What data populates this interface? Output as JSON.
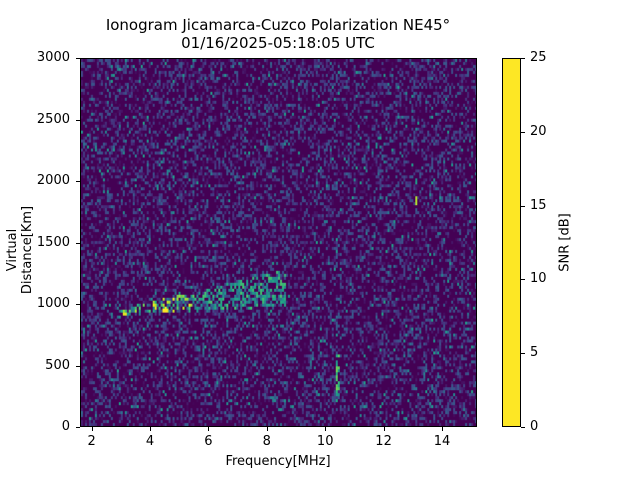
{
  "chart_data": {
    "type": "heatmap",
    "title": "Ionogram Jicamarca-Cuzco Polarization NE45°",
    "subtitle": "01/16/2025-05:18:05 UTC",
    "xlabel": "Frequency[MHz]",
    "ylabel": "Virtual Distance[Km]",
    "xlim": [
      1.6,
      15.2
    ],
    "ylim": [
      0,
      3000
    ],
    "xticks": [
      2,
      4,
      6,
      8,
      10,
      12,
      14
    ],
    "yticks": [
      0,
      500,
      1000,
      1500,
      2000,
      2500,
      3000
    ],
    "colorbar": {
      "label": "SNR [dB]",
      "range": [
        0,
        25
      ],
      "ticks": [
        0,
        5,
        10,
        15,
        20,
        25
      ],
      "colormap": "viridis"
    },
    "features": [
      {
        "name": "F-layer echo trace",
        "freq_range_mhz": [
          2.8,
          8.5
        ],
        "distance_range_km": [
          900,
          1300
        ],
        "peak_snr_db": 25,
        "peak_location": {
          "freq_mhz": 4.5,
          "distance_km": 950
        }
      },
      {
        "name": "interference line",
        "freq_mhz": 10.4,
        "distance_range_km": [
          200,
          600
        ]
      },
      {
        "name": "interference line",
        "freq_mhz": 13.1,
        "distance_range_km": [
          1800,
          1900
        ]
      }
    ],
    "grid": false
  },
  "labels": {
    "title": "Ionogram Jicamarca-Cuzco Polarization NE45°",
    "subtitle": "01/16/2025-05:18:05 UTC",
    "xlabel": "Frequency[MHz]",
    "ylabel": "Virtual Distance[Km]",
    "cbar_label": "SNR [dB]",
    "yticks": [
      "0",
      "500",
      "1000",
      "1500",
      "2000",
      "2500",
      "3000"
    ],
    "xticks": [
      "2",
      "4",
      "6",
      "8",
      "10",
      "12",
      "14"
    ],
    "cticks": [
      "0",
      "5",
      "10",
      "15",
      "20",
      "25"
    ]
  }
}
